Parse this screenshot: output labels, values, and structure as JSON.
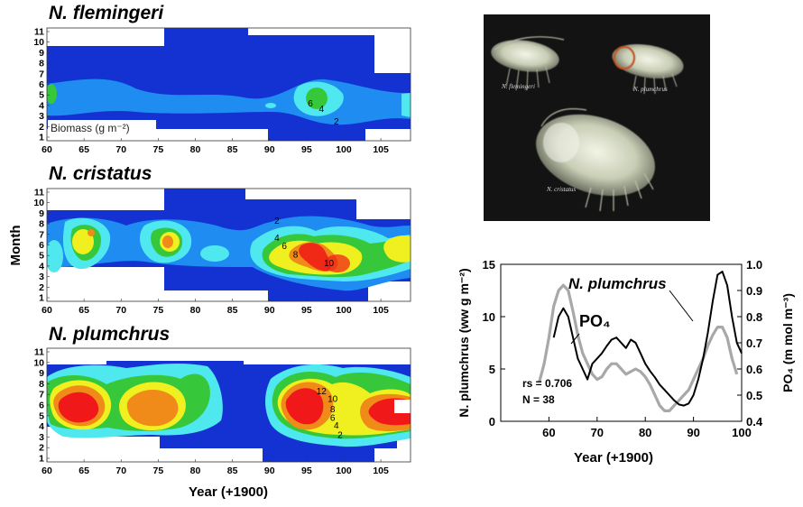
{
  "figure": {
    "panels": [
      {
        "title": "N. flemingeri",
        "annotation": "Biomass (g m⁻²)",
        "contour_labels": [
          {
            "text": "6",
            "year": 95.5,
            "month": 4.2
          },
          {
            "text": "4",
            "year": 97,
            "month": 3.7
          },
          {
            "text": "2",
            "year": 99,
            "month": 2.5
          }
        ]
      },
      {
        "title": "N. cristatus",
        "annotation": "",
        "contour_labels": [
          {
            "text": "2",
            "year": 91,
            "month": 8.3
          },
          {
            "text": "4",
            "year": 91,
            "month": 6.7
          },
          {
            "text": "6",
            "year": 92,
            "month": 5.9
          },
          {
            "text": "8",
            "year": 93.5,
            "month": 5.1
          },
          {
            "text": "10",
            "year": 98,
            "month": 4.3
          }
        ]
      },
      {
        "title": "N. plumchrus",
        "annotation": "",
        "contour_labels": [
          {
            "text": "12",
            "year": 97,
            "month": 7.3
          },
          {
            "text": "10",
            "year": 98.5,
            "month": 6.6
          },
          {
            "text": "8",
            "year": 98.5,
            "month": 5.6
          },
          {
            "text": "6",
            "year": 98.5,
            "month": 4.8
          },
          {
            "text": "4",
            "year": 99,
            "month": 4.1
          },
          {
            "text": "2",
            "year": 99.5,
            "month": 3.2
          }
        ]
      }
    ],
    "month_axis_label": "Month",
    "year_axis_label": "Year (+1900)",
    "month_ticks": [
      "1",
      "2",
      "3",
      "4",
      "5",
      "6",
      "7",
      "8",
      "9",
      "10",
      "11"
    ],
    "year_ticks": [
      "60",
      "65",
      "70",
      "75",
      "80",
      "85",
      "90",
      "95",
      "100",
      "105"
    ],
    "photo": {
      "captions": [
        "N. flemingeri",
        "N. plumchrus",
        "N. cristatus"
      ],
      "colors": {
        "background": "#0e0e0e",
        "body": "#d8dcc4",
        "accent": "#c05a20"
      }
    },
    "colors": {
      "c0": "#1432d2",
      "c1": "#1e8cf0",
      "c2": "#4ee8ee",
      "c3": "#36c83a",
      "c4": "#f0f020",
      "c5": "#f08a18",
      "c6": "#f01818"
    }
  },
  "chart_data": [
    {
      "type": "heatmap",
      "title": "N. flemingeri",
      "xlabel": "Year (+1900)",
      "ylabel": "Month",
      "xlim": [
        60,
        109
      ],
      "ylim": [
        1,
        11
      ],
      "note": "contoured biomass by year and month",
      "contour_levels": [
        2,
        4,
        6,
        8,
        10,
        12
      ]
    },
    {
      "type": "heatmap",
      "title": "N. cristatus",
      "xlabel": "Year (+1900)",
      "ylabel": "Month",
      "xlim": [
        60,
        109
      ],
      "ylim": [
        1,
        11
      ],
      "contour_levels": [
        2,
        4,
        6,
        8,
        10
      ]
    },
    {
      "type": "heatmap",
      "title": "N. plumchrus",
      "xlabel": "Year (+1900)",
      "ylabel": "Month",
      "xlim": [
        60,
        109
      ],
      "ylim": [
        1,
        11
      ],
      "contour_levels": [
        2,
        4,
        6,
        8,
        10,
        12
      ]
    },
    {
      "type": "line",
      "title": "",
      "xlabel": "Year (+1900)",
      "ylabel": "N. plumchrus (ww g m⁻²)",
      "y2label": "PO₄ (m mol m⁻³)",
      "xlim": [
        50,
        100
      ],
      "ylim": [
        0,
        15
      ],
      "y2lim": [
        0.4,
        1.0
      ],
      "xticks": [
        "60",
        "70",
        "80",
        "90",
        "100"
      ],
      "yticks": [
        "0",
        "5",
        "10",
        "15"
      ],
      "y2ticks": [
        "0.4",
        "0.5",
        "0.6",
        "0.7",
        "0.8",
        "0.9",
        "1.0"
      ],
      "series": [
        {
          "name": "N. plumchrus",
          "axis": "left",
          "color": "#000000",
          "x": [
            61,
            62,
            63,
            64,
            65,
            66,
            67,
            68,
            69,
            70,
            71,
            72,
            73,
            74,
            75,
            76,
            77,
            78,
            79,
            80,
            81,
            82,
            83,
            84,
            85,
            86,
            87,
            88,
            89,
            90,
            91,
            92,
            93,
            94,
            95,
            96,
            97,
            98,
            99,
            100
          ],
          "y": [
            8.0,
            10.0,
            10.8,
            10.0,
            8.0,
            6.0,
            5.0,
            4.0,
            5.5,
            6.0,
            6.5,
            7.2,
            7.8,
            8.0,
            7.5,
            7.0,
            7.8,
            7.5,
            6.5,
            5.5,
            4.8,
            4.2,
            3.5,
            3.0,
            2.5,
            2.0,
            1.6,
            1.5,
            1.7,
            2.5,
            4.0,
            6.0,
            8.5,
            11.5,
            14.0,
            14.3,
            13.0,
            10.0,
            7.5,
            6.5
          ]
        },
        {
          "name": "PO₄",
          "axis": "right",
          "color": "#a8a8a8",
          "x": [
            58,
            59,
            60,
            61,
            62,
            63,
            64,
            65,
            66,
            67,
            68,
            69,
            70,
            71,
            72,
            73,
            74,
            75,
            76,
            77,
            78,
            79,
            80,
            81,
            82,
            83,
            84,
            85,
            86,
            87,
            88,
            89,
            90,
            91,
            92,
            93,
            94,
            95,
            96,
            97,
            98,
            99
          ],
          "y": [
            0.55,
            0.62,
            0.72,
            0.84,
            0.9,
            0.92,
            0.9,
            0.82,
            0.73,
            0.66,
            0.62,
            0.58,
            0.56,
            0.57,
            0.6,
            0.62,
            0.62,
            0.6,
            0.58,
            0.59,
            0.6,
            0.59,
            0.57,
            0.54,
            0.5,
            0.46,
            0.44,
            0.44,
            0.46,
            0.48,
            0.5,
            0.52,
            0.56,
            0.6,
            0.64,
            0.69,
            0.73,
            0.76,
            0.76,
            0.72,
            0.64,
            0.58
          ]
        }
      ],
      "annotations": [
        "rs = 0.706",
        "N = 38"
      ]
    }
  ]
}
